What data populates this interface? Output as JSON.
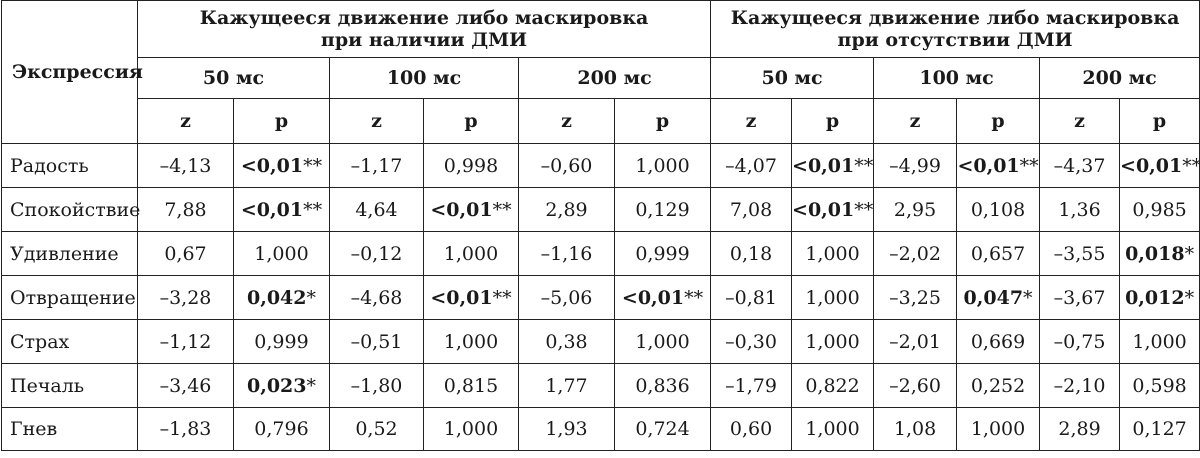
{
  "table": {
    "expression_header": "Экспрессия",
    "groups": [
      {
        "line1": "Кажущееся движение либо маскировка",
        "line2": "при наличии ДМИ"
      },
      {
        "line1": "Кажущееся движение либо маскировка",
        "line2": "при отсутствии ДМИ"
      }
    ],
    "durations": [
      "50 мс",
      "100 мс",
      "200 мс",
      "50 мс",
      "100 мс",
      "200 мс"
    ],
    "stat_labels": {
      "z": "z",
      "p": "p"
    },
    "rows": [
      {
        "label": "Радость",
        "cells": [
          {
            "v": "–4,13",
            "b": false,
            "s": ""
          },
          {
            "v": "<0,01",
            "b": true,
            "s": "**"
          },
          {
            "v": "–1,17",
            "b": false,
            "s": ""
          },
          {
            "v": "0,998",
            "b": false,
            "s": ""
          },
          {
            "v": "–0,60",
            "b": false,
            "s": ""
          },
          {
            "v": "1,000",
            "b": false,
            "s": ""
          },
          {
            "v": "–4,07",
            "b": false,
            "s": ""
          },
          {
            "v": "<0,01",
            "b": true,
            "s": "**"
          },
          {
            "v": "–4,99",
            "b": false,
            "s": ""
          },
          {
            "v": "<0,01",
            "b": true,
            "s": "**"
          },
          {
            "v": "–4,37",
            "b": false,
            "s": ""
          },
          {
            "v": "<0,01",
            "b": true,
            "s": "**"
          }
        ]
      },
      {
        "label": "Спокойствие",
        "cells": [
          {
            "v": "7,88",
            "b": false,
            "s": ""
          },
          {
            "v": "<0,01",
            "b": true,
            "s": "**"
          },
          {
            "v": "4,64",
            "b": false,
            "s": ""
          },
          {
            "v": "<0,01",
            "b": true,
            "s": "**"
          },
          {
            "v": "2,89",
            "b": false,
            "s": ""
          },
          {
            "v": "0,129",
            "b": false,
            "s": ""
          },
          {
            "v": "7,08",
            "b": false,
            "s": ""
          },
          {
            "v": "<0,01",
            "b": true,
            "s": "**"
          },
          {
            "v": "2,95",
            "b": false,
            "s": ""
          },
          {
            "v": "0,108",
            "b": false,
            "s": ""
          },
          {
            "v": "1,36",
            "b": false,
            "s": ""
          },
          {
            "v": "0,985",
            "b": false,
            "s": ""
          }
        ]
      },
      {
        "label": "Удивление",
        "cells": [
          {
            "v": "0,67",
            "b": false,
            "s": ""
          },
          {
            "v": "1,000",
            "b": false,
            "s": ""
          },
          {
            "v": "–0,12",
            "b": false,
            "s": ""
          },
          {
            "v": "1,000",
            "b": false,
            "s": ""
          },
          {
            "v": "–1,16",
            "b": false,
            "s": ""
          },
          {
            "v": "0,999",
            "b": false,
            "s": ""
          },
          {
            "v": "0,18",
            "b": false,
            "s": ""
          },
          {
            "v": "1,000",
            "b": false,
            "s": ""
          },
          {
            "v": "–2,02",
            "b": false,
            "s": ""
          },
          {
            "v": "0,657",
            "b": false,
            "s": ""
          },
          {
            "v": "–3,55",
            "b": false,
            "s": ""
          },
          {
            "v": "0,018",
            "b": true,
            "s": "*"
          }
        ]
      },
      {
        "label": "Отвращение",
        "cells": [
          {
            "v": "–3,28",
            "b": false,
            "s": ""
          },
          {
            "v": "0,042",
            "b": true,
            "s": "*"
          },
          {
            "v": "–4,68",
            "b": false,
            "s": ""
          },
          {
            "v": "<0,01",
            "b": true,
            "s": "**"
          },
          {
            "v": "–5,06",
            "b": false,
            "s": ""
          },
          {
            "v": "<0,01",
            "b": true,
            "s": "**"
          },
          {
            "v": "–0,81",
            "b": false,
            "s": ""
          },
          {
            "v": "1,000",
            "b": false,
            "s": ""
          },
          {
            "v": "–3,25",
            "b": false,
            "s": ""
          },
          {
            "v": "0,047",
            "b": true,
            "s": "*"
          },
          {
            "v": "–3,67",
            "b": false,
            "s": ""
          },
          {
            "v": "0,012",
            "b": true,
            "s": "*"
          }
        ]
      },
      {
        "label": "Страх",
        "cells": [
          {
            "v": "–1,12",
            "b": false,
            "s": ""
          },
          {
            "v": "0,999",
            "b": false,
            "s": ""
          },
          {
            "v": "–0,51",
            "b": false,
            "s": ""
          },
          {
            "v": "1,000",
            "b": false,
            "s": ""
          },
          {
            "v": "0,38",
            "b": false,
            "s": ""
          },
          {
            "v": "1,000",
            "b": false,
            "s": ""
          },
          {
            "v": "–0,30",
            "b": false,
            "s": ""
          },
          {
            "v": "1,000",
            "b": false,
            "s": ""
          },
          {
            "v": "–2,01",
            "b": false,
            "s": ""
          },
          {
            "v": "0,669",
            "b": false,
            "s": ""
          },
          {
            "v": "–0,75",
            "b": false,
            "s": ""
          },
          {
            "v": "1,000",
            "b": false,
            "s": ""
          }
        ]
      },
      {
        "label": "Печаль",
        "cells": [
          {
            "v": "–3,46",
            "b": false,
            "s": ""
          },
          {
            "v": "0,023",
            "b": true,
            "s": "*"
          },
          {
            "v": "–1,80",
            "b": false,
            "s": ""
          },
          {
            "v": "0,815",
            "b": false,
            "s": ""
          },
          {
            "v": "1,77",
            "b": false,
            "s": ""
          },
          {
            "v": "0,836",
            "b": false,
            "s": ""
          },
          {
            "v": "–1,79",
            "b": false,
            "s": ""
          },
          {
            "v": "0,822",
            "b": false,
            "s": ""
          },
          {
            "v": "–2,60",
            "b": false,
            "s": ""
          },
          {
            "v": "0,252",
            "b": false,
            "s": ""
          },
          {
            "v": "–2,10",
            "b": false,
            "s": ""
          },
          {
            "v": "0,598",
            "b": false,
            "s": ""
          }
        ]
      },
      {
        "label": "Гнев",
        "cells": [
          {
            "v": "–1,83",
            "b": false,
            "s": ""
          },
          {
            "v": "0,796",
            "b": false,
            "s": ""
          },
          {
            "v": "0,52",
            "b": false,
            "s": ""
          },
          {
            "v": "1,000",
            "b": false,
            "s": ""
          },
          {
            "v": "1,93",
            "b": false,
            "s": ""
          },
          {
            "v": "0,724",
            "b": false,
            "s": ""
          },
          {
            "v": "0,60",
            "b": false,
            "s": ""
          },
          {
            "v": "1,000",
            "b": false,
            "s": ""
          },
          {
            "v": "1,08",
            "b": false,
            "s": ""
          },
          {
            "v": "1,000",
            "b": false,
            "s": ""
          },
          {
            "v": "2,89",
            "b": false,
            "s": ""
          },
          {
            "v": "0,127",
            "b": false,
            "s": ""
          }
        ]
      }
    ]
  }
}
